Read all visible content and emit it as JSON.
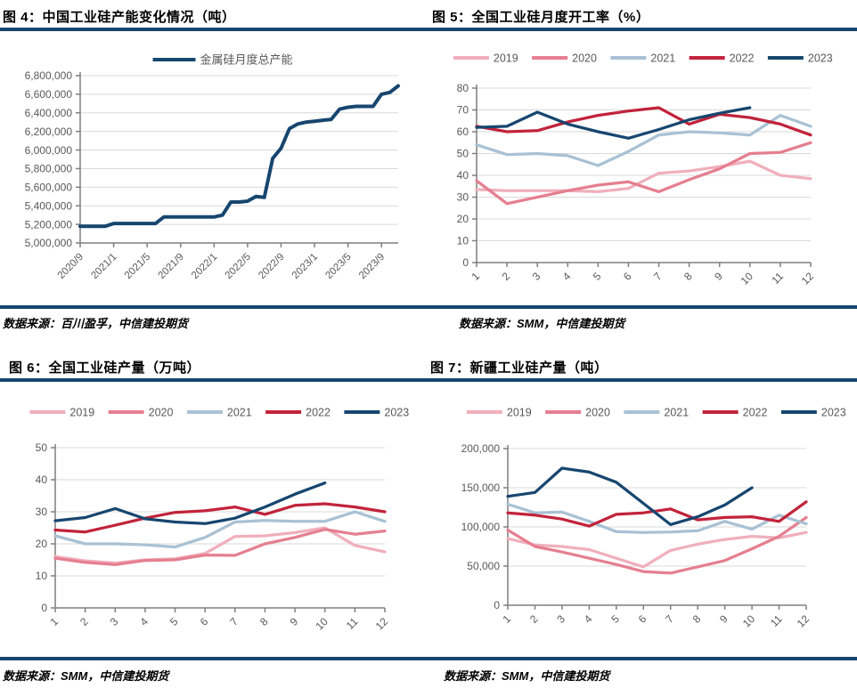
{
  "figures": [
    {
      "title": "图 4：中国工业硅产能变化情况（吨）",
      "source": "数据来源：百川盈孚，中信建投期货"
    },
    {
      "title": "图 5：全国工业硅月度开工率（%）",
      "source": "数据来源：SMM，中信建投期货"
    },
    {
      "title": "图 6：全国工业硅产量（万吨）",
      "source": "数据来源：SMM，中信建投期货"
    },
    {
      "title": "图 7：新疆工业硅产量（吨）",
      "source": "数据来源：SMM，中信建投期货"
    }
  ],
  "colors": {
    "rule": "#17466F",
    "axis_line": "#7F7F7F",
    "gridline": "#D9D9D9",
    "tick_text": "#595959",
    "legend_text": "#595959",
    "series_2019": "#F0AFBC",
    "series_2020": "#E57F90",
    "series_2021": "#A9C1D4",
    "series_2022": "#C2233B",
    "series_2023": "#17466F"
  },
  "chart_data": [
    {
      "type": "line",
      "title": "中国工业硅产能变化情况（吨）",
      "xlabel": "",
      "ylabel": "",
      "grid": true,
      "legend_position": "top",
      "ylim": [
        5000000,
        6800000
      ],
      "ytick_step": 200000,
      "x": [
        "2020/9",
        "2020/10",
        "2020/11",
        "2020/12",
        "2021/1",
        "2021/2",
        "2021/3",
        "2021/4",
        "2021/5",
        "2021/6",
        "2021/7",
        "2021/8",
        "2021/9",
        "2021/10",
        "2021/11",
        "2021/12",
        "2022/1",
        "2022/2",
        "2022/3",
        "2022/4",
        "2022/5",
        "2022/6",
        "2022/7",
        "2022/8",
        "2022/9",
        "2022/10",
        "2022/11",
        "2022/12",
        "2023/1",
        "2023/2",
        "2023/3",
        "2023/4",
        "2023/5",
        "2023/6",
        "2023/7",
        "2023/8",
        "2023/9",
        "2023/10",
        "2023/11"
      ],
      "x_tick_indices": [
        0,
        4,
        8,
        12,
        16,
        20,
        24,
        28,
        32,
        36
      ],
      "series": [
        {
          "name": "金属硅月度总产能",
          "color": "#17466F",
          "values": [
            5180000,
            5180000,
            5180000,
            5180000,
            5210000,
            5210000,
            5210000,
            5210000,
            5210000,
            5210000,
            5280000,
            5280000,
            5280000,
            5280000,
            5280000,
            5280000,
            5280000,
            5300000,
            5440000,
            5440000,
            5450000,
            5500000,
            5490000,
            5910000,
            6020000,
            6230000,
            6280000,
            6300000,
            6310000,
            6320000,
            6330000,
            6440000,
            6460000,
            6470000,
            6470000,
            6470000,
            6600000,
            6620000,
            6690000
          ]
        }
      ]
    },
    {
      "type": "line",
      "title": "全国工业硅月度开工率（%）",
      "xlabel": "",
      "ylabel": "",
      "grid": true,
      "legend_position": "top",
      "ylim": [
        0,
        80
      ],
      "ytick_step": 10,
      "x": [
        "1",
        "2",
        "3",
        "4",
        "5",
        "6",
        "7",
        "8",
        "9",
        "10",
        "11",
        "12"
      ],
      "series": [
        {
          "name": "2019",
          "color": "#F0AFBC",
          "values": [
            33.5,
            33,
            33,
            33,
            32.5,
            34,
            41,
            42,
            44,
            46.5,
            40,
            38.5
          ]
        },
        {
          "name": "2020",
          "color": "#E57F90",
          "values": [
            37.5,
            27,
            30,
            33,
            35.5,
            37,
            32.5,
            38,
            43,
            50,
            50.5,
            55
          ]
        },
        {
          "name": "2021",
          "color": "#A9C1D4",
          "values": [
            54,
            49.5,
            50,
            49,
            44.5,
            51,
            58.5,
            60,
            59.5,
            58.5,
            67.5,
            62.5
          ]
        },
        {
          "name": "2022",
          "color": "#C2233B",
          "values": [
            62.5,
            60,
            60.5,
            64.5,
            67.5,
            69.5,
            71,
            63.5,
            68,
            66.5,
            63.5,
            58.5
          ]
        },
        {
          "name": "2023",
          "color": "#17466F",
          "values": [
            62,
            62.5,
            69,
            63.5,
            60,
            57,
            61,
            65.5,
            68.5,
            71
          ]
        }
      ]
    },
    {
      "type": "line",
      "title": "全国工业硅产量（万吨）",
      "xlabel": "",
      "ylabel": "",
      "grid": true,
      "legend_position": "top",
      "ylim": [
        0,
        50
      ],
      "ytick_step": 10,
      "x": [
        "1",
        "2",
        "3",
        "4",
        "5",
        "6",
        "7",
        "8",
        "9",
        "10",
        "11",
        "12"
      ],
      "series": [
        {
          "name": "2019",
          "color": "#F0AFBC",
          "values": [
            16,
            14.7,
            14,
            15,
            15.3,
            17,
            22.3,
            22.5,
            23.5,
            25,
            19.5,
            17.5
          ]
        },
        {
          "name": "2020",
          "color": "#E57F90",
          "values": [
            15.5,
            14.2,
            13.5,
            14.8,
            15,
            16.5,
            16.4,
            20,
            22,
            24.5,
            23,
            24
          ]
        },
        {
          "name": "2021",
          "color": "#A9C1D4",
          "values": [
            22.5,
            20,
            20,
            19.7,
            19,
            22,
            26.8,
            27.3,
            27,
            27,
            30,
            27
          ]
        },
        {
          "name": "2022",
          "color": "#C2233B",
          "values": [
            24.3,
            23.7,
            25.8,
            28,
            29.8,
            30.3,
            31.5,
            29.2,
            32,
            32.5,
            31.5,
            30
          ]
        },
        {
          "name": "2023",
          "color": "#17466F",
          "values": [
            27.2,
            28.2,
            31,
            27.8,
            26.8,
            26.3,
            28,
            31.5,
            35.5,
            39
          ]
        }
      ]
    },
    {
      "type": "line",
      "title": "新疆工业硅产量（吨）",
      "xlabel": "",
      "ylabel": "",
      "grid": true,
      "legend_position": "top",
      "ylim": [
        0,
        200000
      ],
      "ytick_step": 50000,
      "x": [
        "1",
        "2",
        "3",
        "4",
        "5",
        "6",
        "7",
        "8",
        "9",
        "10",
        "11",
        "12"
      ],
      "series": [
        {
          "name": "2019",
          "color": "#F0AFBC",
          "values": [
            85000,
            77000,
            75000,
            71000,
            60000,
            49000,
            70000,
            78000,
            84000,
            88000,
            86000,
            93000
          ]
        },
        {
          "name": "2020",
          "color": "#E57F90",
          "values": [
            96000,
            75000,
            68000,
            60000,
            52000,
            43000,
            41000,
            49000,
            57000,
            72000,
            88000,
            112000
          ]
        },
        {
          "name": "2021",
          "color": "#A9C1D4",
          "values": [
            129000,
            118000,
            119000,
            107000,
            94000,
            93000,
            93500,
            95000,
            107000,
            97000,
            115000,
            104000
          ]
        },
        {
          "name": "2022",
          "color": "#C2233B",
          "values": [
            118000,
            115000,
            110000,
            101000,
            116000,
            118000,
            123000,
            109000,
            112000,
            113000,
            107000,
            132000
          ]
        },
        {
          "name": "2023",
          "color": "#17466F",
          "values": [
            139000,
            144000,
            175000,
            170000,
            157000,
            130000,
            103000,
            113000,
            128000,
            150000
          ]
        }
      ]
    }
  ]
}
